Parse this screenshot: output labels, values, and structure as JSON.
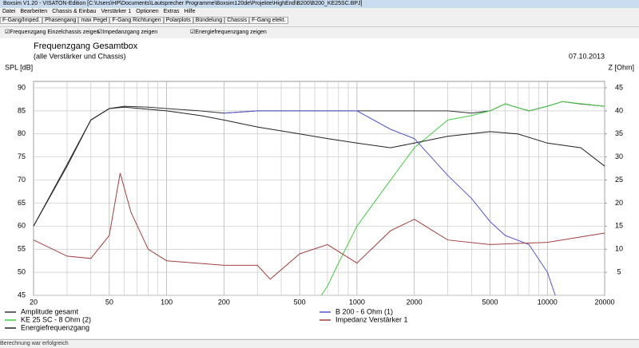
{
  "window": {
    "title": "Boxsim V1.20 - VISATON-Edition [C:\\Users\\HP\\Documents\\Lautsprecher Programme\\Boxsim120de\\Projekte\\HighEnd\\B200\\B200_KE25SC.BPJ]"
  },
  "menu": [
    "Datei",
    "Bearbeiten",
    "Chassis & Einbau",
    "Verstärker 1",
    "Optionen",
    "Extras",
    "Hilfe"
  ],
  "tabs": [
    "F-Gang/Imped.",
    "Phasengang",
    "max Pegel",
    "F-Gang Richtungen",
    "Polarplots",
    "Bündelung",
    "Chassis",
    "F-Gang elekt."
  ],
  "checkboxes": [
    "Frequenzgang Einzelchassis zeigen",
    "Impedanzgang zeigen",
    "Energiefrequenzgang zeigen"
  ],
  "status": "Berechnung war erfolgreich",
  "chart_data": {
    "type": "line",
    "title": "Frequenzgang Gesamtbox",
    "subtitle": "(alle Verstärker und Chassis)",
    "date": "07.10.2013",
    "ylabel": "SPL [dB]",
    "y2label": "Z [Ohm]",
    "xscale": "log",
    "xlim": [
      20,
      20000
    ],
    "xticks": [
      20,
      50,
      100,
      200,
      500,
      1000,
      2000,
      5000,
      10000,
      20000
    ],
    "x_minor_gridlines": [
      30,
      40,
      60,
      70,
      80,
      90,
      300,
      400,
      600,
      700,
      800,
      900,
      3000,
      4000,
      6000,
      7000,
      8000,
      9000
    ],
    "ylim": [
      45,
      90
    ],
    "yticks": [
      45,
      50,
      55,
      60,
      65,
      70,
      75,
      80,
      85,
      90
    ],
    "y2lim": [
      0,
      45
    ],
    "y2ticks": [
      5,
      10,
      15,
      20,
      25,
      30,
      35,
      40,
      45
    ],
    "grid": true,
    "series": [
      {
        "name": "Amplitude gesamt",
        "color": "#333333",
        "x": [
          20,
          30,
          40,
          50,
          60,
          80,
          100,
          150,
          200,
          300,
          500,
          1000,
          2000,
          3000,
          4000,
          5000,
          6000,
          8000,
          10000,
          12000,
          15000,
          20000
        ],
        "values": [
          60,
          73.4,
          83,
          85.5,
          86,
          85.8,
          85.5,
          85,
          84.5,
          85,
          85,
          85,
          85,
          85,
          84.5,
          85,
          86.5,
          85,
          86,
          87,
          86.5,
          86
        ]
      },
      {
        "name": "KE 25 SC - 8 Ohm   (2)",
        "color": "#44cc44",
        "x": [
          650,
          700,
          800,
          1000,
          1500,
          2000,
          3000,
          4000,
          5000,
          6000,
          8000,
          10000,
          12000,
          20000
        ],
        "values": [
          45,
          47,
          52,
          60,
          70,
          77,
          83,
          84,
          85,
          86.5,
          85,
          86,
          87,
          86
        ]
      },
      {
        "name": "Energiefrequenzgang",
        "color": "#222222",
        "x": [
          20,
          30,
          40,
          50,
          60,
          100,
          150,
          200,
          300,
          500,
          700,
          1000,
          1500,
          2000,
          3000,
          5000,
          7000,
          10000,
          15000,
          20000
        ],
        "values": [
          60,
          73,
          83,
          85.5,
          85.8,
          85,
          84,
          83,
          81.5,
          80,
          79,
          78,
          77,
          78,
          79.5,
          80.5,
          80,
          78,
          77,
          73
        ]
      },
      {
        "name": "B 200 - 6 Ohm (1)",
        "color": "#5555cc",
        "x": [
          200,
          300,
          500,
          1000,
          1500,
          2000,
          3000,
          4000,
          5000,
          6000,
          8000,
          10000,
          11000
        ],
        "values": [
          84.5,
          85,
          85,
          85,
          81,
          79,
          71,
          66,
          61,
          58,
          56,
          50,
          45
        ]
      },
      {
        "name": "Impedanz Verstärker 1",
        "color": "#a04040",
        "axis": "y2",
        "x": [
          20,
          30,
          40,
          50,
          57,
          65,
          80,
          100,
          200,
          300,
          350,
          500,
          700,
          1000,
          1500,
          2000,
          2500,
          3000,
          5000,
          10000,
          20000
        ],
        "values": [
          12,
          8.5,
          8,
          13,
          26.5,
          18,
          10,
          7.5,
          6.5,
          6.5,
          3.5,
          9,
          11,
          7,
          14,
          16.5,
          14,
          12,
          11,
          11.5,
          13.5
        ]
      }
    ]
  }
}
